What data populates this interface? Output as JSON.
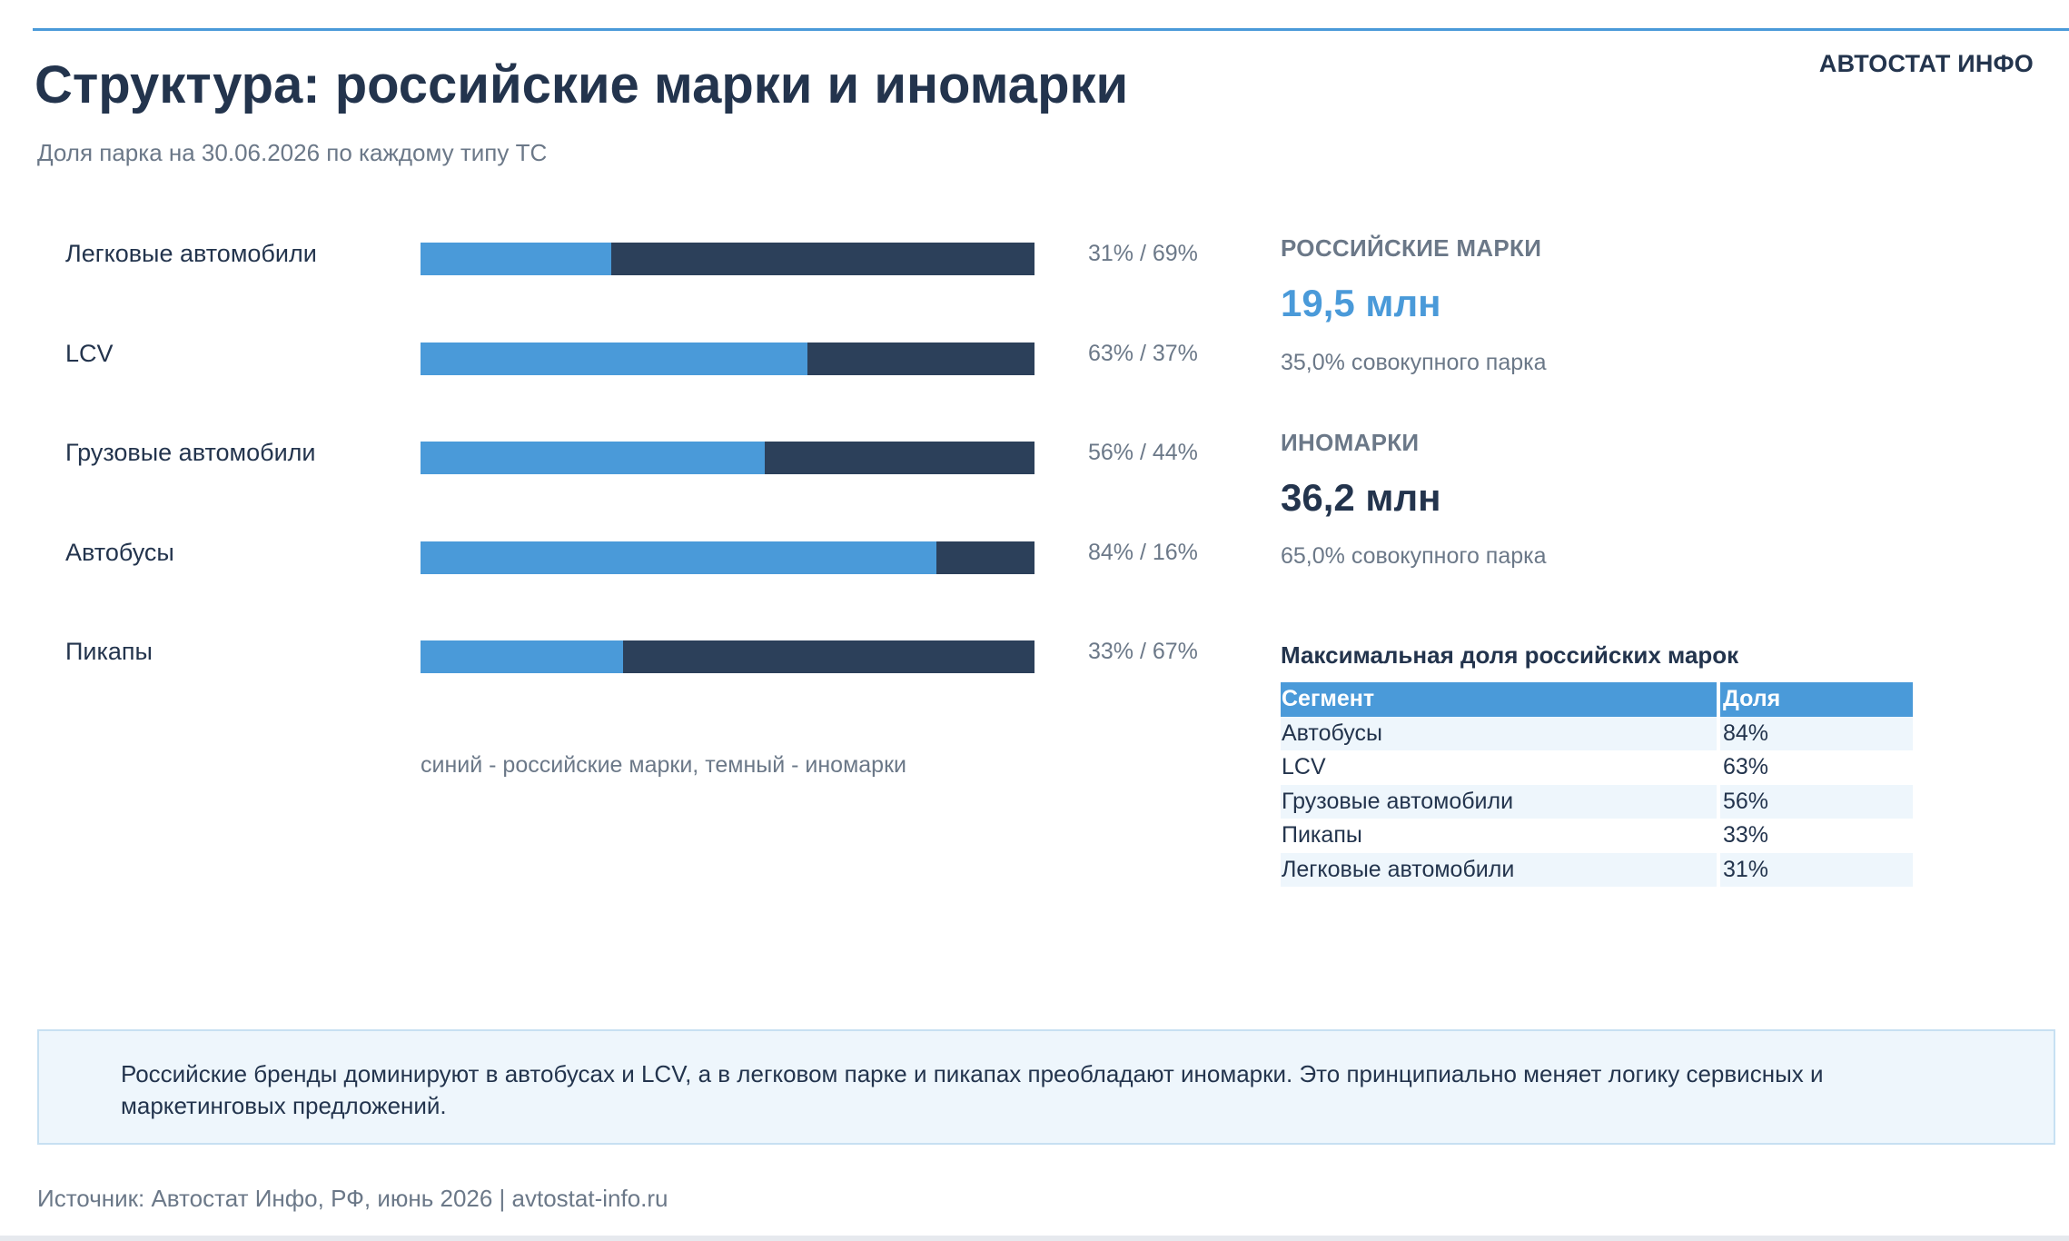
{
  "header": {
    "brand": "АВТОСТАТ ИНФО",
    "title": "Структура: российские марки и иномарки",
    "subtitle": "Доля парка на 30.06.2026 по каждому типу ТС"
  },
  "colors": {
    "russian": "#4a9ad9",
    "foreign": "#2c405a",
    "text": "#23344d",
    "muted": "#6b7888"
  },
  "chart_data": {
    "type": "bar",
    "orientation": "horizontal",
    "stacked": true,
    "percent_stacked": true,
    "categories": [
      "Легковые автомобили",
      "LCV",
      "Грузовые автомобили",
      "Автобусы",
      "Пикапы"
    ],
    "series": [
      {
        "values": [
          31,
          63,
          56,
          84,
          33
        ],
        "color": "#4a9ad9"
      },
      {
        "values": [
          69,
          37,
          44,
          16,
          67
        ],
        "color": "#2c405a"
      }
    ],
    "data_labels": [
      "31% / 69%",
      "63% / 37%",
      "56% / 44%",
      "84% / 16%",
      "33% / 67%"
    ],
    "legend_note": "синий - российские марки, темный - иномарки",
    "xlim": [
      0,
      100
    ],
    "grid": false
  },
  "kpis": [
    {
      "label": "РОССИЙСКИЕ МАРКИ",
      "value": "19,5 млн",
      "sub": "35,0% совокупного парка",
      "color": "#4a9ad9"
    },
    {
      "label": "ИНОМАРКИ",
      "value": "36,2 млн",
      "sub": "65,0% совокупного парка",
      "color": "#23344d"
    }
  ],
  "table": {
    "title": "Максимальная доля российских марок",
    "headers": [
      "Сегмент",
      "Доля"
    ],
    "rows": [
      [
        "Автобусы",
        "84%"
      ],
      [
        "LCV",
        "63%"
      ],
      [
        "Грузовые автомобили",
        "56%"
      ],
      [
        "Пикапы",
        "33%"
      ],
      [
        "Легковые автомобили",
        "31%"
      ]
    ]
  },
  "insight": "Российские бренды доминируют в автобусах и LCV, а в легковом парке и пикапах преобладают иномарки. Это принципиально меняет логику сервисных и маркетинговых предложений.",
  "source": "Источник: Автостат Инфо, РФ, июнь 2026 | avtostat-info.ru"
}
